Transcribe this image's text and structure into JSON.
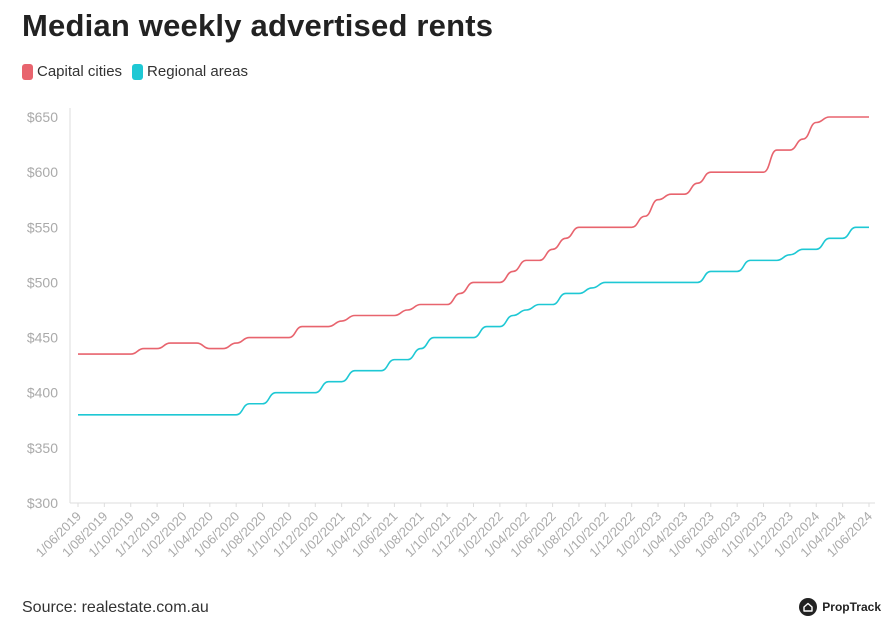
{
  "header": {
    "title": "Median weekly advertised rents"
  },
  "footer": {
    "source": "Source: realestate.com.au",
    "brand": "PropTrack"
  },
  "chart_data": {
    "type": "line",
    "title": "Median weekly advertised rents",
    "xlabel": "",
    "ylabel": "",
    "ylim": [
      300,
      650
    ],
    "yticks": [
      300,
      350,
      400,
      450,
      500,
      550,
      600,
      650
    ],
    "ytick_labels": [
      "$300",
      "$350",
      "$400",
      "$450",
      "$500",
      "$550",
      "$600",
      "$650"
    ],
    "x": [
      "1/06/2019",
      "1/07/2019",
      "1/08/2019",
      "1/09/2019",
      "1/10/2019",
      "1/11/2019",
      "1/12/2019",
      "1/01/2020",
      "1/02/2020",
      "1/03/2020",
      "1/04/2020",
      "1/05/2020",
      "1/06/2020",
      "1/07/2020",
      "1/08/2020",
      "1/09/2020",
      "1/10/2020",
      "1/11/2020",
      "1/12/2020",
      "1/01/2021",
      "1/02/2021",
      "1/03/2021",
      "1/04/2021",
      "1/05/2021",
      "1/06/2021",
      "1/07/2021",
      "1/08/2021",
      "1/09/2021",
      "1/10/2021",
      "1/11/2021",
      "1/12/2021",
      "1/01/2022",
      "1/02/2022",
      "1/03/2022",
      "1/04/2022",
      "1/05/2022",
      "1/06/2022",
      "1/07/2022",
      "1/08/2022",
      "1/09/2022",
      "1/10/2022",
      "1/11/2022",
      "1/12/2022",
      "1/01/2023",
      "1/02/2023",
      "1/03/2023",
      "1/04/2023",
      "1/05/2023",
      "1/06/2023",
      "1/07/2023",
      "1/08/2023",
      "1/09/2023",
      "1/10/2023",
      "1/11/2023",
      "1/12/2023",
      "1/01/2024",
      "1/02/2024",
      "1/03/2024",
      "1/04/2024",
      "1/05/2024",
      "1/06/2024"
    ],
    "xtick_labels": [
      "1/06/2019",
      "1/08/2019",
      "1/10/2019",
      "1/12/2019",
      "1/02/2020",
      "1/04/2020",
      "1/06/2020",
      "1/08/2020",
      "1/10/2020",
      "1/12/2020",
      "1/02/2021",
      "1/04/2021",
      "1/06/2021",
      "1/08/2021",
      "1/10/2021",
      "1/12/2021",
      "1/02/2022",
      "1/04/2022",
      "1/06/2022",
      "1/08/2022",
      "1/10/2022",
      "1/12/2022",
      "1/02/2023",
      "1/04/2023",
      "1/06/2023",
      "1/08/2023",
      "1/10/2023",
      "1/12/2023",
      "1/02/2024",
      "1/04/2024",
      "1/06/2024"
    ],
    "legend_position": "top-left",
    "grid": false,
    "series": [
      {
        "name": "Capital cities",
        "color": "#e8646e",
        "values": [
          435,
          435,
          435,
          435,
          435,
          440,
          440,
          445,
          445,
          445,
          440,
          440,
          445,
          450,
          450,
          450,
          450,
          460,
          460,
          460,
          465,
          470,
          470,
          470,
          470,
          475,
          480,
          480,
          480,
          490,
          500,
          500,
          500,
          510,
          520,
          520,
          530,
          540,
          550,
          550,
          550,
          550,
          550,
          560,
          575,
          580,
          580,
          590,
          600,
          600,
          600,
          600,
          600,
          620,
          620,
          630,
          645,
          650,
          650,
          650,
          650
        ]
      },
      {
        "name": "Regional areas",
        "color": "#1ec8d4",
        "values": [
          380,
          380,
          380,
          380,
          380,
          380,
          380,
          380,
          380,
          380,
          380,
          380,
          380,
          390,
          390,
          400,
          400,
          400,
          400,
          410,
          410,
          420,
          420,
          420,
          430,
          430,
          440,
          450,
          450,
          450,
          450,
          460,
          460,
          470,
          475,
          480,
          480,
          490,
          490,
          495,
          500,
          500,
          500,
          500,
          500,
          500,
          500,
          500,
          510,
          510,
          510,
          520,
          520,
          520,
          525,
          530,
          530,
          540,
          540,
          550,
          550
        ]
      }
    ]
  }
}
